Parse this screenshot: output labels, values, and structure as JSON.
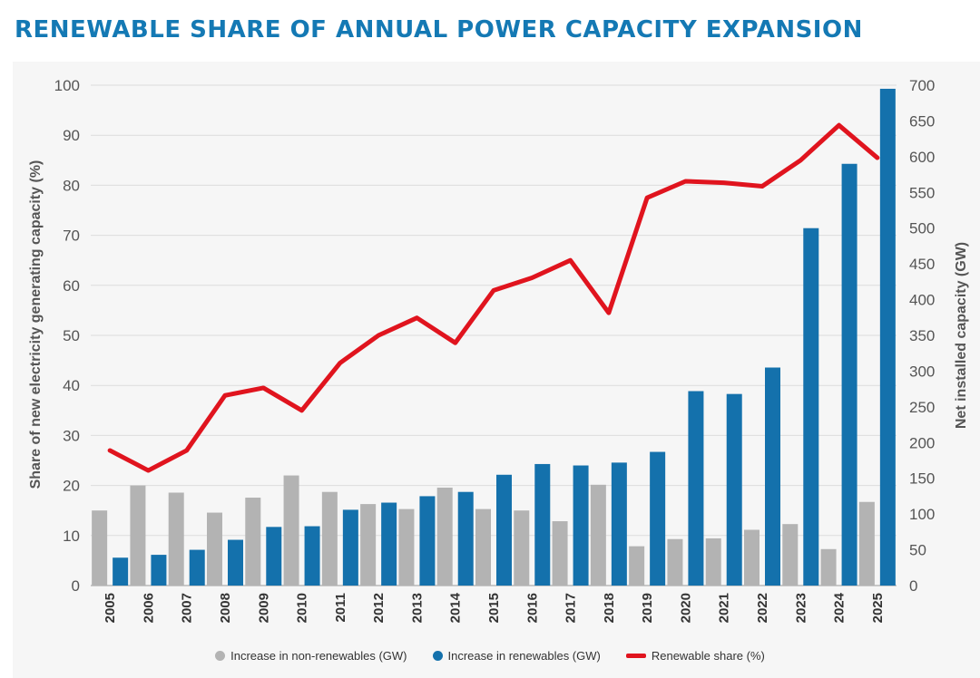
{
  "title": "RENEWABLE SHARE OF ANNUAL POWER CAPACITY EXPANSION",
  "chart_data": {
    "type": "bar",
    "categories": [
      "2005",
      "2006",
      "2007",
      "2008",
      "2009",
      "2010",
      "2011",
      "2012",
      "2013",
      "2014",
      "2015",
      "2016",
      "2017",
      "2018",
      "2019",
      "2020",
      "2021",
      "2022",
      "2023",
      "2024",
      "2025"
    ],
    "series": [
      {
        "name": "Increase in non-renewables (GW)",
        "axis": "right",
        "color": "#b3b3b3",
        "values": [
          105,
          140,
          130,
          102,
          123,
          154,
          131,
          114,
          107,
          137,
          107,
          105,
          90,
          141,
          55,
          65,
          66,
          78,
          86,
          51,
          117
        ]
      },
      {
        "name": "Increase in renewables (GW)",
        "axis": "right",
        "color": "#1471ac",
        "values": [
          39,
          43,
          50,
          64,
          82,
          83,
          106,
          116,
          125,
          131,
          155,
          170,
          168,
          172,
          187,
          272,
          268,
          305,
          500,
          590,
          695
        ]
      },
      {
        "name": "Renewable share (%)",
        "axis": "left",
        "type": "line",
        "color": "#e0141e",
        "values": [
          27,
          23,
          27,
          38,
          39.5,
          35,
          44.5,
          50,
          53.5,
          48.5,
          59,
          61.5,
          65,
          54.5,
          77.5,
          80.8,
          80.5,
          79.8,
          85,
          92,
          85.5
        ]
      }
    ],
    "ylabel_left": "Share of new electricity generating capacity (%)",
    "ylabel_right": "Net installed capacity (GW)",
    "ylim_left": [
      0,
      100
    ],
    "ylim_right": [
      0,
      700
    ],
    "yticks_left": [
      "0",
      "10",
      "20",
      "30",
      "40",
      "50",
      "60",
      "70",
      "80",
      "90",
      "100"
    ],
    "yticks_right": [
      "0",
      "50",
      "100",
      "150",
      "200",
      "250",
      "300",
      "350",
      "400",
      "450",
      "500",
      "550",
      "600",
      "650",
      "700"
    ],
    "grid": true,
    "legend_position": "bottom"
  }
}
